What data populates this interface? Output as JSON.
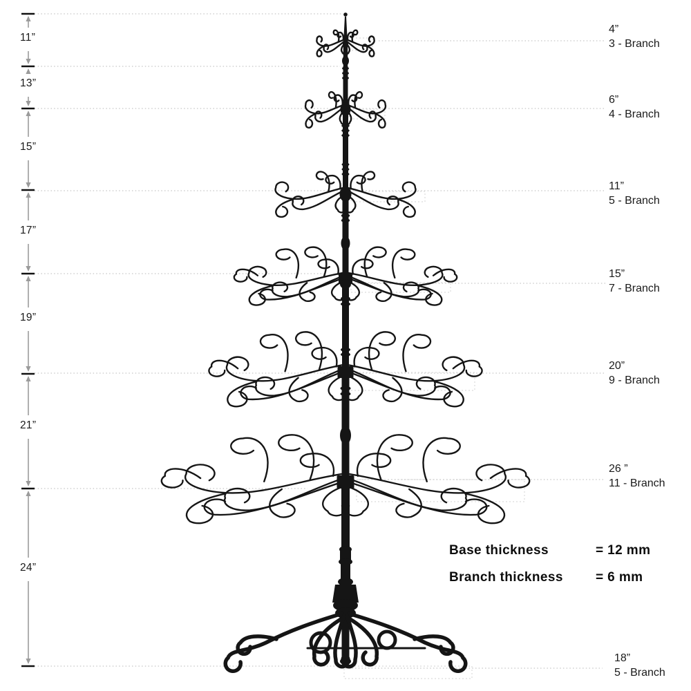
{
  "left_ruler": {
    "segments": [
      {
        "label": "11”"
      },
      {
        "label": "13”"
      },
      {
        "label": "15”"
      },
      {
        "label": "17”"
      },
      {
        "label": "19”"
      },
      {
        "label": "21”"
      },
      {
        "label": "24”"
      }
    ]
  },
  "tiers": [
    {
      "size": "4”",
      "branches": "3 - Branch"
    },
    {
      "size": "6”",
      "branches": "4 - Branch"
    },
    {
      "size": "11”",
      "branches": "5 - Branch"
    },
    {
      "size": "15”",
      "branches": "7 - Branch"
    },
    {
      "size": "20”",
      "branches": "9 - Branch"
    },
    {
      "size": "26 ”",
      "branches": "11 - Branch"
    },
    {
      "size": "18”",
      "branches": "5 - Branch"
    }
  ],
  "notes": {
    "base": {
      "label": "Base thickness",
      "value": "= 12 mm"
    },
    "branch": {
      "label": "Branch thickness",
      "value": "= 6 mm"
    }
  },
  "colors": {
    "ink": "#151515",
    "arrow": "#9b9b9b",
    "dash": "#cfcfcf",
    "box_dash": "#dadada",
    "text": "#1a1a1a",
    "background": "#ffffff"
  }
}
